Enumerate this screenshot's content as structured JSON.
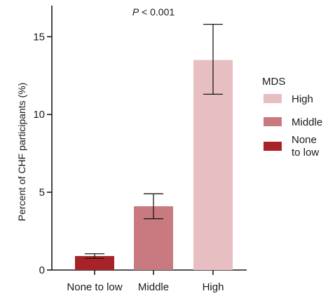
{
  "chart_data": {
    "type": "bar",
    "annotation": {
      "italic": "P",
      "rest": " < 0.001"
    },
    "ylabel": "Percent of CHF participants (%)",
    "xlabel": "",
    "ylim": [
      0,
      17
    ],
    "yticks": [
      0,
      5,
      10,
      15
    ],
    "categories": [
      "None to low",
      "Middle",
      "High"
    ],
    "values": [
      0.9,
      4.1,
      13.5
    ],
    "error_low": [
      0.75,
      3.3,
      11.3
    ],
    "error_high": [
      1.05,
      4.9,
      15.8
    ],
    "colors": [
      "#a82328",
      "#c87a80",
      "#e7bec1"
    ],
    "legend": {
      "title": "MDS",
      "placement": "right",
      "items": [
        {
          "lines": [
            "High"
          ],
          "color": "#e7bec1"
        },
        {
          "lines": [
            "Middle"
          ],
          "color": "#c87a80"
        },
        {
          "lines": [
            "None",
            "to low"
          ],
          "color": "#a82328"
        }
      ]
    },
    "grid": false
  }
}
